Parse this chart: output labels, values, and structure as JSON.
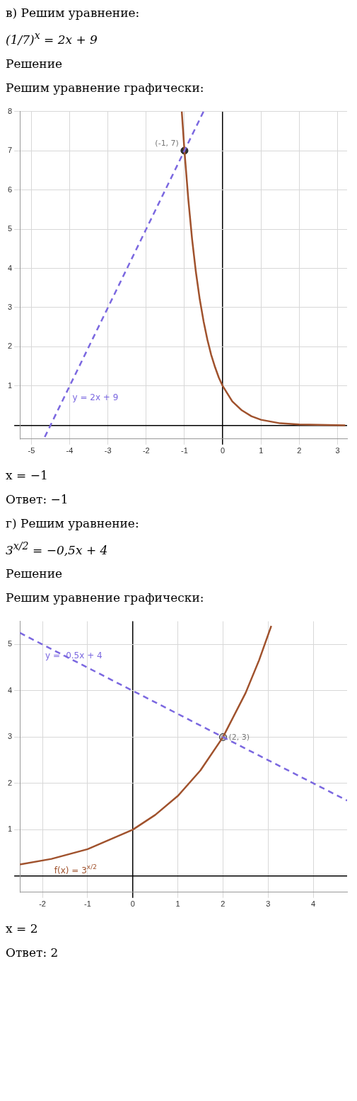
{
  "chart_data": [
    {
      "type": "line",
      "title": "в) Решим уравнение:",
      "subtitle": "(1/7)$^{x}$ = 2x + 9",
      "xlim": [
        -5.3,
        3.25
      ],
      "ylim": [
        -0.35,
        8
      ],
      "xticks": [
        -5,
        -4,
        -3,
        -2,
        -1,
        0,
        1,
        2,
        3
      ],
      "yticks": [
        {
          "value": 0,
          "label": null
        },
        1,
        2,
        3,
        4,
        5,
        6,
        7,
        8
      ],
      "grid": true,
      "annotations": [
        "Решение",
        "Решим уравнение графически:",
        {
          "text": "(-1, 7)",
          "x": -1,
          "y": 7
        },
        "x = −1",
        "Ответ: −1"
      ],
      "series": [
        {
          "name": "y = 2x + 9",
          "color": "#7b68e0",
          "line_style": "dashed",
          "marker": "none",
          "x": [
            -4.65,
            -4,
            -3,
            -2,
            -1,
            -0.5
          ],
          "values": [
            -0.3,
            1,
            3,
            5,
            7,
            8
          ]
        },
        {
          "color": "#a0522d",
          "line_style": "solid",
          "marker": "none",
          "x": [
            -1.07,
            -1,
            -0.9,
            -0.8,
            -0.7,
            -0.6,
            -0.5,
            -0.4,
            -0.3,
            -0.2,
            -0.1,
            0,
            0.25,
            0.5,
            0.75,
            1,
            1.5,
            2,
            2.5,
            3.2
          ],
          "values": [
            8,
            7,
            5.77,
            4.74,
            3.9,
            3.21,
            2.65,
            2.18,
            1.79,
            1.48,
            1.21,
            1,
            0.61,
            0.38,
            0.23,
            0.14,
            0.05,
            0.02,
            0.01,
            0
          ]
        },
        {
          "type": "scatter",
          "color": "#333333",
          "marker": "circle",
          "x": [
            -1
          ],
          "values": [
            7
          ]
        }
      ]
    },
    {
      "type": "line",
      "title": "г) Решим уравнение:",
      "subtitle": "3$^{x/2}$ = −0,5x + 4",
      "xlim": [
        -2.5,
        4.75
      ],
      "ylim": [
        -0.35,
        5.5
      ],
      "xticks": [
        -2,
        -1,
        0,
        1,
        2,
        3,
        4
      ],
      "yticks": [
        {
          "value": 0,
          "label": null
        },
        1,
        2,
        3,
        4,
        5
      ],
      "grid": true,
      "annotations": [
        "Решение",
        "Решим уравнение графически:",
        {
          "text": "(2, 3)",
          "x": 2,
          "y": 3
        },
        "x = 2",
        "Ответ: 2"
      ],
      "series": [
        {
          "name": "y = -0.5x + 4",
          "color": "#7b68e0",
          "line_style": "dashed",
          "marker": "none",
          "x": [
            -2.5,
            -2,
            0,
            2,
            4.75
          ],
          "values": [
            5.25,
            5,
            4,
            3,
            1.63
          ]
        },
        {
          "name": "f(x) = 3$^{x/2}$",
          "color": "#a0522d",
          "line_style": "solid",
          "marker": "none",
          "x": [
            -2.5,
            -1.8,
            -1,
            0,
            0.5,
            1,
            1.5,
            2,
            2.5,
            2.8,
            3.07
          ],
          "values": [
            0.25,
            0.37,
            0.58,
            1,
            1.32,
            1.73,
            2.28,
            3,
            3.95,
            4.66,
            5.4
          ]
        },
        {
          "type": "scatter",
          "color": "#bbbbbb",
          "marker": "circle",
          "x": [
            2
          ],
          "values": [
            3
          ]
        }
      ]
    }
  ]
}
